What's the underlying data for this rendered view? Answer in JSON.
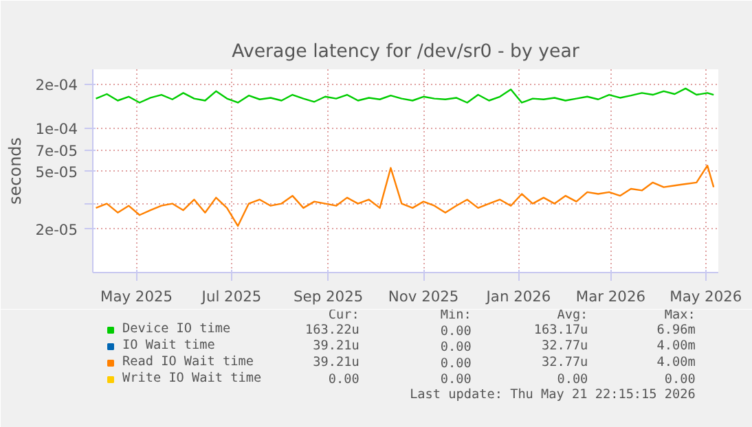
{
  "chart_data": {
    "type": "line",
    "title": "Average latency for /dev/sr0 - by year",
    "ylabel": "seconds",
    "x": [
      "2025-04-20",
      "2025-04-27",
      "2025-05-04",
      "2025-05-11",
      "2025-05-18",
      "2025-05-25",
      "2025-06-01",
      "2025-06-08",
      "2025-06-15",
      "2025-06-22",
      "2025-06-29",
      "2025-07-06",
      "2025-07-13",
      "2025-07-20",
      "2025-07-27",
      "2025-08-03",
      "2025-08-10",
      "2025-08-17",
      "2025-08-24",
      "2025-08-31",
      "2025-09-07",
      "2025-09-14",
      "2025-09-21",
      "2025-09-28",
      "2025-10-05",
      "2025-10-12",
      "2025-10-19",
      "2025-10-26",
      "2025-11-02",
      "2025-11-09",
      "2025-11-16",
      "2025-11-23",
      "2025-11-30",
      "2025-12-07",
      "2025-12-14",
      "2025-12-21",
      "2025-12-28",
      "2026-01-04",
      "2026-01-11",
      "2026-01-18",
      "2026-01-25",
      "2026-02-01",
      "2026-02-08",
      "2026-02-15",
      "2026-02-22",
      "2026-03-01",
      "2026-03-08",
      "2026-03-15",
      "2026-03-22",
      "2026-03-29",
      "2026-04-05",
      "2026-04-12",
      "2026-04-19",
      "2026-04-26",
      "2026-05-03",
      "2026-05-10",
      "2026-05-17",
      "2026-05-21"
    ],
    "series": [
      {
        "name": "Device IO time",
        "color": "#00cc00",
        "values": [
          0.00016,
          0.000172,
          0.000155,
          0.000165,
          0.00015,
          0.000162,
          0.00017,
          0.000158,
          0.000175,
          0.00016,
          0.000155,
          0.00018,
          0.00016,
          0.00015,
          0.000168,
          0.000158,
          0.000162,
          0.000155,
          0.00017,
          0.00016,
          0.000152,
          0.000165,
          0.00016,
          0.00017,
          0.000155,
          0.000162,
          0.000158,
          0.000168,
          0.00016,
          0.000155,
          0.000165,
          0.00016,
          0.000158,
          0.000162,
          0.00015,
          0.00017,
          0.000155,
          0.000165,
          0.000185,
          0.00015,
          0.00016,
          0.000158,
          0.000162,
          0.000155,
          0.00016,
          0.000165,
          0.000158,
          0.00017,
          0.000162,
          0.000168,
          0.000175,
          0.00017,
          0.00018,
          0.000172,
          0.000188,
          0.00017,
          0.000175,
          0.00017
        ]
      },
      {
        "name": "IO Wait time",
        "color": "#0066b3",
        "values": [
          null,
          null,
          null,
          null,
          null,
          null,
          null,
          null,
          null,
          null,
          null,
          null,
          null,
          null,
          null,
          null,
          null,
          null,
          null,
          null,
          null,
          null,
          null,
          null,
          null,
          null,
          null,
          null,
          null,
          null,
          null,
          null,
          null,
          null,
          null,
          null,
          null,
          null,
          null,
          null,
          null,
          null,
          null,
          null,
          null,
          null,
          null,
          null,
          null,
          null,
          null,
          null,
          null,
          null,
          null,
          null,
          null,
          null
        ]
      },
      {
        "name": "Read IO Wait time",
        "color": "#ff8000",
        "values": [
          2.8e-05,
          3e-05,
          2.6e-05,
          2.9e-05,
          2.5e-05,
          2.7e-05,
          2.9e-05,
          3e-05,
          2.7e-05,
          3.2e-05,
          2.6e-05,
          3.3e-05,
          2.8e-05,
          2.1e-05,
          3e-05,
          3.2e-05,
          2.9e-05,
          3e-05,
          3.4e-05,
          2.8e-05,
          3.1e-05,
          3e-05,
          2.9e-05,
          3.3e-05,
          3e-05,
          3.2e-05,
          2.8e-05,
          5.3e-05,
          3e-05,
          2.8e-05,
          3.1e-05,
          2.9e-05,
          2.6e-05,
          2.9e-05,
          3.2e-05,
          2.8e-05,
          3e-05,
          3.2e-05,
          2.9e-05,
          3.5e-05,
          3e-05,
          3.3e-05,
          3e-05,
          3.4e-05,
          3.1e-05,
          3.6e-05,
          3.5e-05,
          3.6e-05,
          3.4e-05,
          3.8e-05,
          3.7e-05,
          4.2e-05,
          3.9e-05,
          4e-05,
          4.1e-05,
          4.2e-05,
          5.5e-05,
          3.9e-05
        ]
      },
      {
        "name": "Write IO Wait time",
        "color": "#ffcc00",
        "values": [
          null,
          null,
          null,
          null,
          null,
          null,
          null,
          null,
          null,
          null,
          null,
          null,
          null,
          null,
          null,
          null,
          null,
          null,
          null,
          null,
          null,
          null,
          null,
          null,
          null,
          null,
          null,
          null,
          null,
          null,
          null,
          null,
          null,
          null,
          null,
          null,
          null,
          null,
          null,
          null,
          null,
          null,
          null,
          null,
          null,
          null,
          null,
          null,
          null,
          null,
          null,
          null,
          null,
          null,
          null,
          null,
          null,
          null
        ]
      }
    ],
    "log": true,
    "xlim": [
      "2025-04-18",
      "2026-05-24"
    ],
    "xticks": [
      {
        "value": "2025-05-16",
        "label": "May 2025"
      },
      {
        "value": "2025-07-16",
        "label": "Jul 2025"
      },
      {
        "value": "2025-09-16",
        "label": "Sep 2025"
      },
      {
        "value": "2025-11-16",
        "label": "Nov 2025"
      },
      {
        "value": "2026-01-16",
        "label": "Jan 2026"
      },
      {
        "value": "2026-03-16",
        "label": "Mar 2026"
      },
      {
        "value": "2026-05-16",
        "label": "May 2026"
      }
    ],
    "ylim": [
      1e-05,
      0.000255
    ],
    "yticks": [
      {
        "value": 2e-05,
        "label": "2e-05"
      },
      {
        "value": 3e-05,
        "label": null
      },
      {
        "value": 5e-05,
        "label": "5e-05"
      },
      {
        "value": 7e-05,
        "label": "7e-05"
      },
      {
        "value": 0.0001,
        "label": "1e-04"
      },
      {
        "value": 0.0002,
        "label": "2e-04"
      }
    ],
    "grid": true,
    "legend": "bottom",
    "annotations": [
      "Cur:",
      "Min:",
      "Avg:",
      "Max:",
      "163.22u",
      "0.00",
      "163.17u",
      "6.96m",
      "39.21u",
      "0.00",
      "32.77u",
      "4.00m",
      "39.21u",
      "0.00",
      "32.77u",
      "4.00m",
      "0.00",
      "0.00",
      "0.00",
      "0.00",
      "Last update: Thu May 21 22:15:15 2026"
    ]
  }
}
